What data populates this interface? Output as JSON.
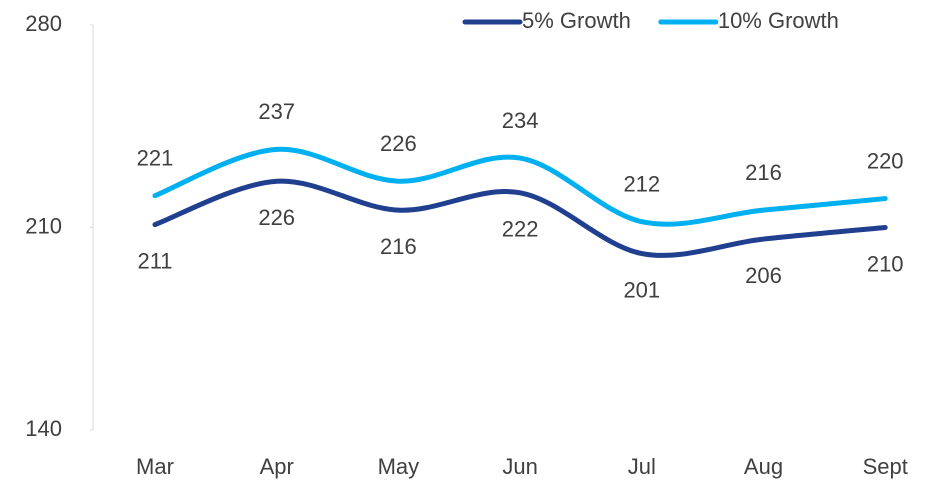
{
  "chart_data": {
    "type": "line",
    "categories": [
      "Mar",
      "Apr",
      "May",
      "Jun",
      "Jul",
      "Aug",
      "Sept"
    ],
    "series": [
      {
        "name": "5% Growth",
        "color": "#203f8f",
        "values": [
          211,
          226,
          216,
          222,
          201,
          206,
          210
        ]
      },
      {
        "name": "10% Growth",
        "color": "#00b0f0",
        "values": [
          221,
          237,
          226,
          234,
          212,
          216,
          220
        ]
      }
    ],
    "ylim": [
      140,
      280
    ],
    "yticks": [
      140,
      210,
      280
    ],
    "legend": "top-right",
    "smooth": true
  }
}
